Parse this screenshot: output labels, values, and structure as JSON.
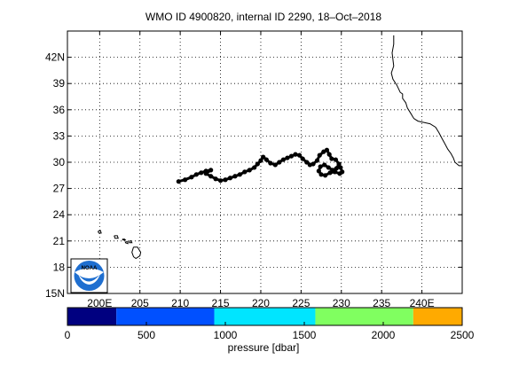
{
  "title": "WMO ID 4900820, internal ID 2290, 18–Oct–2018",
  "map": {
    "lon_range": [
      196,
      245
    ],
    "lat_range": [
      15,
      45
    ],
    "lon_ticks": [
      {
        "value": 200,
        "label": "200E"
      },
      {
        "value": 205,
        "label": "205"
      },
      {
        "value": 210,
        "label": "210"
      },
      {
        "value": 215,
        "label": "215"
      },
      {
        "value": 220,
        "label": "220"
      },
      {
        "value": 225,
        "label": "225"
      },
      {
        "value": 230,
        "label": "230"
      },
      {
        "value": 235,
        "label": "235"
      },
      {
        "value": 240,
        "label": "240E"
      }
    ],
    "lat_ticks": [
      {
        "value": 15,
        "label": "15N"
      },
      {
        "value": 18,
        "label": "18"
      },
      {
        "value": 21,
        "label": "21"
      },
      {
        "value": 24,
        "label": "24"
      },
      {
        "value": 27,
        "label": "27"
      },
      {
        "value": 30,
        "label": "30"
      },
      {
        "value": 33,
        "label": "33"
      },
      {
        "value": 36,
        "label": "36"
      },
      {
        "value": 39,
        "label": "39"
      },
      {
        "value": 42,
        "label": "42N"
      }
    ],
    "grid": "dotted",
    "logo_text": "NOAA",
    "coastline": [
      [
        236.5,
        44.5
      ],
      [
        236.5,
        43.5
      ],
      [
        236.3,
        42.5
      ],
      [
        236.5,
        41.0
      ],
      [
        236.2,
        40.2
      ],
      [
        236.4,
        39.5
      ],
      [
        236.9,
        38.8
      ],
      [
        237.3,
        38.0
      ],
      [
        237.6,
        37.8
      ],
      [
        237.6,
        37.3
      ],
      [
        238.0,
        36.8
      ],
      [
        238.2,
        36.2
      ],
      [
        238.6,
        35.6
      ],
      [
        239.0,
        35.0
      ],
      [
        239.5,
        34.7
      ],
      [
        240.5,
        34.5
      ],
      [
        241.0,
        34.4
      ],
      [
        241.7,
        34.0
      ],
      [
        242.1,
        33.4
      ],
      [
        242.5,
        32.7
      ],
      [
        242.8,
        32.2
      ],
      [
        243.2,
        31.5
      ],
      [
        243.6,
        31.0
      ],
      [
        243.9,
        30.5
      ],
      [
        244.1,
        30.0
      ],
      [
        244.6,
        29.6
      ],
      [
        245.0,
        29.6
      ]
    ],
    "islands": [
      [
        [
          199.8,
          22.1
        ],
        [
          200.1,
          22.2
        ],
        [
          200.2,
          21.9
        ],
        [
          199.9,
          21.9
        ],
        [
          199.8,
          22.1
        ]
      ],
      [
        [
          201.8,
          21.6
        ],
        [
          202.2,
          21.6
        ],
        [
          202.3,
          21.3
        ],
        [
          201.9,
          21.3
        ],
        [
          201.8,
          21.6
        ]
      ],
      [
        [
          202.8,
          21.2
        ],
        [
          203.1,
          21.2
        ],
        [
          203.2,
          21.1
        ],
        [
          202.9,
          21.1
        ],
        [
          202.8,
          21.2
        ]
      ],
      [
        [
          203.7,
          21.0
        ],
        [
          203.9,
          21.0
        ],
        [
          204.0,
          20.8
        ],
        [
          203.7,
          20.8
        ],
        [
          203.7,
          21.0
        ]
      ],
      [
        [
          203.2,
          20.9
        ],
        [
          203.5,
          20.9
        ],
        [
          203.5,
          20.7
        ],
        [
          203.2,
          20.8
        ],
        [
          203.2,
          20.9
        ]
      ],
      [
        [
          204.2,
          20.3
        ],
        [
          204.7,
          20.3
        ],
        [
          205.1,
          19.7
        ],
        [
          205.0,
          19.3
        ],
        [
          204.5,
          19.0
        ],
        [
          204.2,
          19.2
        ],
        [
          204.0,
          19.7
        ],
        [
          204.2,
          20.3
        ]
      ]
    ]
  },
  "chart_data": {
    "type": "scatter",
    "description_of_marks": "float trajectory",
    "track": [
      [
        209.8,
        27.8
      ],
      [
        210.6,
        28.0
      ],
      [
        211.4,
        28.3
      ],
      [
        212.0,
        28.6
      ],
      [
        212.6,
        28.8
      ],
      [
        213.2,
        29.0
      ],
      [
        213.8,
        29.1
      ],
      [
        213.2,
        28.7
      ],
      [
        213.8,
        28.4
      ],
      [
        214.4,
        28.1
      ],
      [
        215.0,
        27.9
      ],
      [
        215.6,
        28.0
      ],
      [
        216.2,
        28.2
      ],
      [
        216.8,
        28.4
      ],
      [
        217.4,
        28.6
      ],
      [
        218.0,
        28.9
      ],
      [
        218.6,
        29.1
      ],
      [
        219.2,
        29.4
      ],
      [
        219.6,
        29.8
      ],
      [
        220.0,
        30.2
      ],
      [
        220.3,
        30.6
      ],
      [
        220.7,
        30.3
      ],
      [
        221.2,
        29.9
      ],
      [
        221.8,
        29.7
      ],
      [
        222.3,
        30.0
      ],
      [
        222.8,
        30.3
      ],
      [
        223.3,
        30.5
      ],
      [
        223.8,
        30.7
      ],
      [
        224.3,
        30.9
      ],
      [
        224.8,
        30.8
      ],
      [
        225.2,
        30.4
      ],
      [
        225.7,
        30.0
      ],
      [
        226.1,
        29.7
      ],
      [
        226.5,
        29.8
      ],
      [
        227.0,
        30.2
      ],
      [
        227.3,
        30.8
      ],
      [
        227.8,
        31.2
      ],
      [
        228.2,
        31.4
      ],
      [
        228.5,
        30.9
      ],
      [
        228.8,
        30.4
      ],
      [
        229.3,
        30.3
      ],
      [
        229.7,
        29.8
      ],
      [
        229.4,
        29.3
      ],
      [
        228.9,
        29.1
      ],
      [
        228.4,
        29.4
      ],
      [
        227.9,
        29.7
      ],
      [
        227.4,
        29.5
      ],
      [
        227.2,
        29.0
      ],
      [
        227.5,
        28.6
      ],
      [
        228.0,
        28.5
      ],
      [
        228.6,
        28.8
      ],
      [
        229.2,
        28.9
      ],
      [
        229.8,
        28.7
      ],
      [
        230.1,
        28.9
      ],
      [
        229.9,
        29.4
      ]
    ]
  },
  "colorbar": {
    "label": "pressure [dbar]",
    "ticks": [
      0,
      500,
      1000,
      1500,
      2000,
      2500
    ],
    "range": [
      0,
      2500
    ],
    "segments": [
      {
        "from": 0,
        "to": 310,
        "color": "#000080"
      },
      {
        "from": 310,
        "to": 930,
        "color": "#0050ff"
      },
      {
        "from": 930,
        "to": 1570,
        "color": "#00e5ff"
      },
      {
        "from": 1570,
        "to": 2190,
        "color": "#80ff60"
      },
      {
        "from": 2190,
        "to": 2500,
        "color": "#ffaa00"
      }
    ]
  }
}
